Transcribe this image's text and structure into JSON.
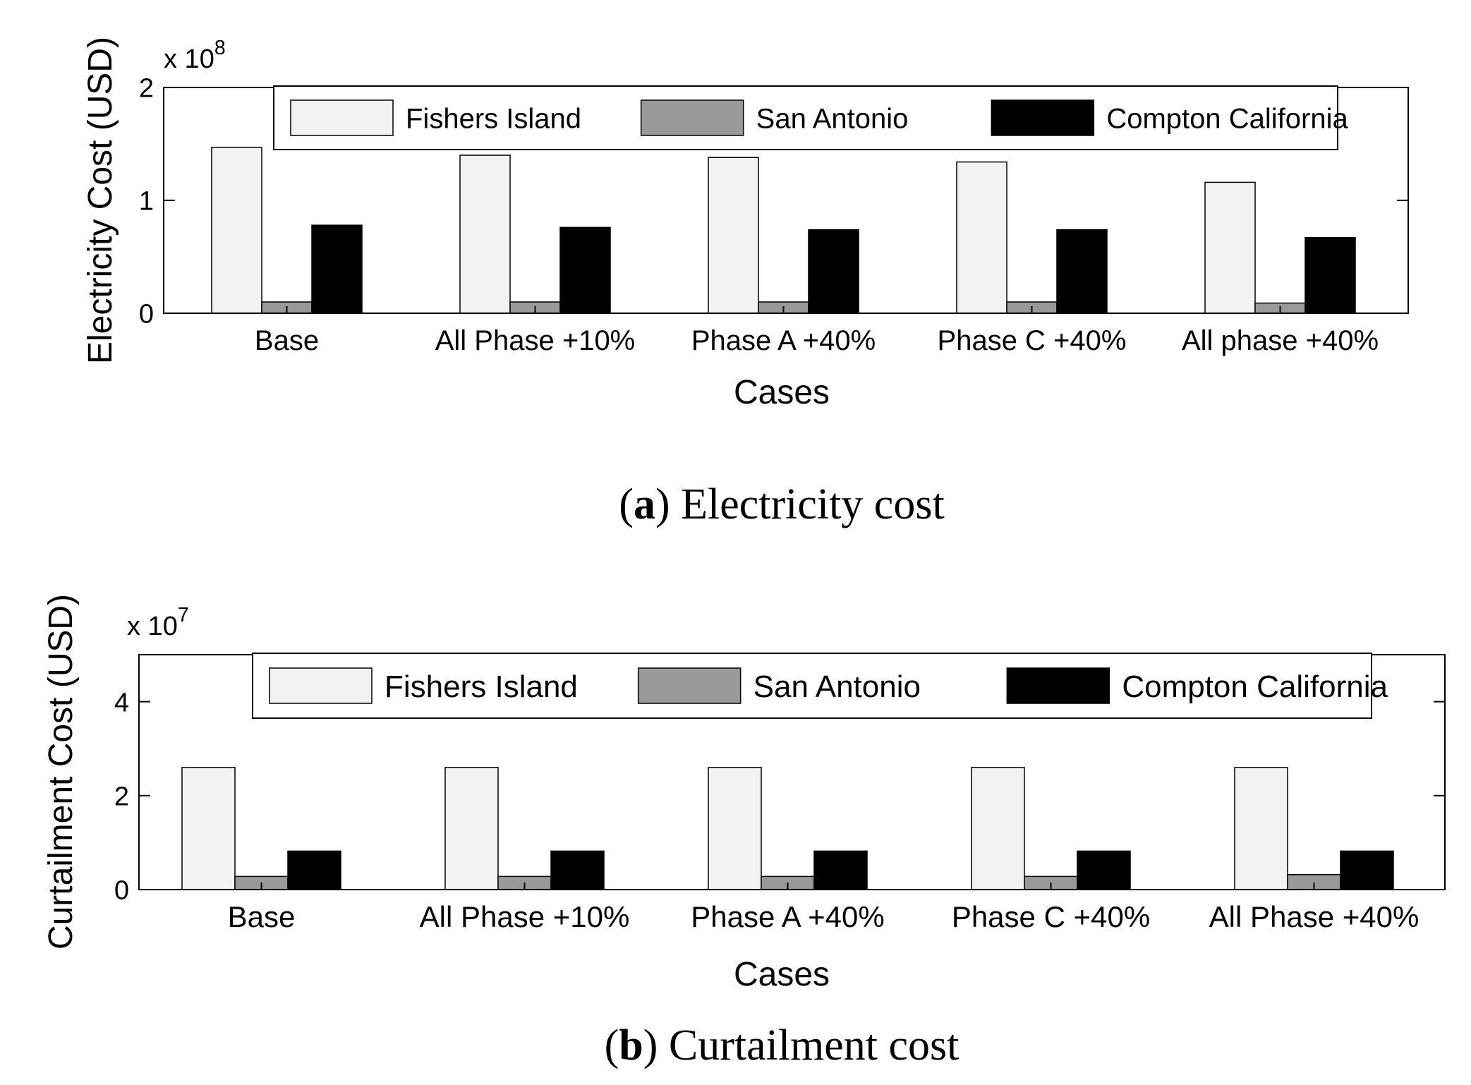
{
  "chart_data": [
    {
      "type": "bar",
      "id": "a",
      "caption_letter": "a",
      "caption_text": "Electricity cost",
      "xlabel": "Cases",
      "ylabel": "Electricity Cost (USD)",
      "multiplier_base": "x 10",
      "multiplier_exp": "8",
      "ylim": [
        0,
        2
      ],
      "yticks": [
        0,
        1,
        2
      ],
      "categories": [
        "Base",
        "All Phase +10%",
        "Phase A +40%",
        "Phase C +40%",
        "All phase +40%"
      ],
      "series": [
        {
          "name": "Fishers Island",
          "color": "#f2f2f2",
          "values": [
            1.47,
            1.4,
            1.38,
            1.34,
            1.16
          ]
        },
        {
          "name": "San Antonio",
          "color": "#999999",
          "values": [
            0.1,
            0.1,
            0.1,
            0.1,
            0.09
          ]
        },
        {
          "name": "Compton California",
          "color": "#000000",
          "values": [
            0.78,
            0.76,
            0.74,
            0.74,
            0.67
          ]
        }
      ],
      "legend_position": "top-right"
    },
    {
      "type": "bar",
      "id": "b",
      "caption_letter": "b",
      "caption_text": "Curtailment cost",
      "xlabel": "Cases",
      "ylabel": "Curtailment Cost (USD)",
      "multiplier_base": "x 10",
      "multiplier_exp": "7",
      "ylim": [
        0,
        5
      ],
      "yticks": [
        0,
        2,
        4
      ],
      "categories": [
        "Base",
        "All Phase +10%",
        "Phase A +40%",
        "Phase C +40%",
        "All Phase +40%"
      ],
      "series": [
        {
          "name": "Fishers Island",
          "color": "#f2f2f2",
          "values": [
            2.6,
            2.6,
            2.6,
            2.6,
            2.6
          ]
        },
        {
          "name": "San Antonio",
          "color": "#999999",
          "values": [
            0.28,
            0.28,
            0.28,
            0.28,
            0.32
          ]
        },
        {
          "name": "Compton California",
          "color": "#000000",
          "values": [
            0.82,
            0.82,
            0.82,
            0.82,
            0.82
          ]
        }
      ],
      "legend_position": "top"
    }
  ]
}
